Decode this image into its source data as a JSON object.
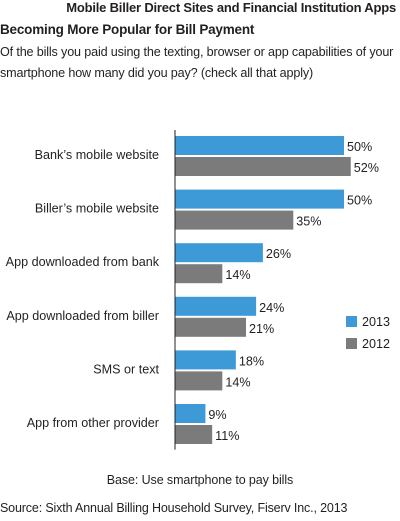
{
  "header": {
    "title": "Mobile Biller Direct Sites and Financial Institution Apps",
    "subtitle": "Becoming More Popular for Bill Payment",
    "question": "Of the bills you paid using the texting, browser or app capabilities of your smartphone how many did you pay? (check all that apply)"
  },
  "chart_data": {
    "type": "bar",
    "orientation": "horizontal",
    "categories": [
      "Bank’s mobile website",
      "Biller’s mobile website",
      "App downloaded from bank",
      "App downloaded from biller",
      "SMS or text",
      "App from other provider"
    ],
    "series": [
      {
        "name": "2013",
        "values": [
          50,
          50,
          26,
          24,
          18,
          9
        ],
        "color": "#3d9ad6"
      },
      {
        "name": "2012",
        "values": [
          52,
          35,
          14,
          21,
          14,
          11
        ],
        "color": "#7b7b7b"
      }
    ],
    "value_suffix": "%",
    "xlim": [
      0,
      100
    ],
    "grid": false,
    "legend_position": "right"
  },
  "footer": {
    "base": "Base: Use smartphone to pay bills",
    "source": "Source: Sixth Annual Billing Household Survey, Fiserv Inc., 2013"
  }
}
